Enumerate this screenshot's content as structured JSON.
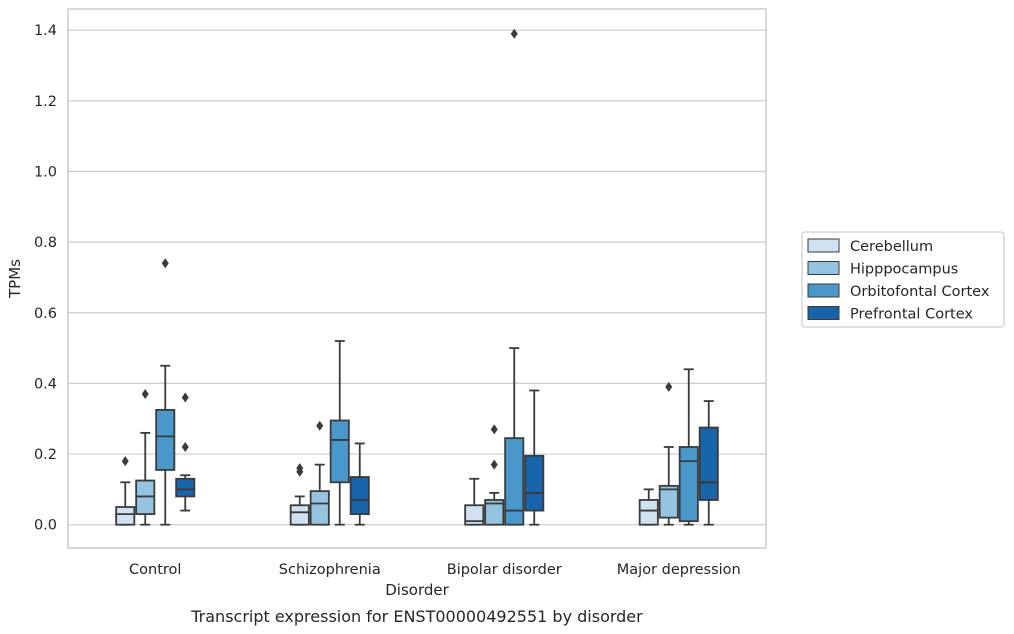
{
  "caption": "Transcript expression for ENST00000492551 by disorder",
  "chart_data": {
    "type": "box",
    "xlabel": "Disorder",
    "ylabel": "TPMs",
    "ylim": [
      -0.066,
      1.46
    ],
    "yticks": [
      0.0,
      0.2,
      0.4,
      0.6,
      0.8,
      1.0,
      1.2,
      1.4
    ],
    "ytick_labels": [
      "0.0",
      "0.2",
      "0.4",
      "0.6",
      "0.8",
      "1.0",
      "1.2",
      "1.4"
    ],
    "grid": "horizontal",
    "legend_position": "right",
    "categories": [
      "Control",
      "Schizophrenia",
      "Bipolar disorder",
      "Major depression"
    ],
    "series": [
      {
        "name": "Cerebellum",
        "color": "#d0e1f2",
        "boxes": [
          {
            "whislo": 0.0,
            "q1": 0.0,
            "med": 0.03,
            "q3": 0.05,
            "whishi": 0.12,
            "fliers": [
              0.18
            ]
          },
          {
            "whislo": 0.0,
            "q1": 0.0,
            "med": 0.035,
            "q3": 0.055,
            "whishi": 0.08,
            "fliers": [
              0.15,
              0.16
            ]
          },
          {
            "whislo": 0.0,
            "q1": 0.0,
            "med": 0.01,
            "q3": 0.055,
            "whishi": 0.13,
            "fliers": []
          },
          {
            "whislo": 0.0,
            "q1": 0.0,
            "med": 0.04,
            "q3": 0.07,
            "whishi": 0.1,
            "fliers": []
          }
        ]
      },
      {
        "name": "Hipppocampus",
        "color": "#94c4df",
        "boxes": [
          {
            "whislo": 0.0,
            "q1": 0.03,
            "med": 0.08,
            "q3": 0.125,
            "whishi": 0.26,
            "fliers": [
              0.37
            ]
          },
          {
            "whislo": 0.0,
            "q1": 0.0,
            "med": 0.06,
            "q3": 0.095,
            "whishi": 0.17,
            "fliers": [
              0.28
            ]
          },
          {
            "whislo": 0.0,
            "q1": 0.0,
            "med": 0.06,
            "q3": 0.07,
            "whishi": 0.09,
            "fliers": [
              0.17,
              0.27
            ]
          },
          {
            "whislo": 0.0,
            "q1": 0.02,
            "med": 0.1,
            "q3": 0.11,
            "whishi": 0.22,
            "fliers": [
              0.39
            ]
          }
        ]
      },
      {
        "name": "Orbitofontal Cortex",
        "color": "#4a98c9",
        "boxes": [
          {
            "whislo": 0.0,
            "q1": 0.155,
            "med": 0.25,
            "q3": 0.325,
            "whishi": 0.45,
            "fliers": [
              0.74
            ]
          },
          {
            "whislo": 0.0,
            "q1": 0.12,
            "med": 0.24,
            "q3": 0.295,
            "whishi": 0.52,
            "fliers": []
          },
          {
            "whislo": 0.0,
            "q1": 0.0,
            "med": 0.04,
            "q3": 0.245,
            "whishi": 0.5,
            "fliers": [
              1.39
            ]
          },
          {
            "whislo": 0.0,
            "q1": 0.01,
            "med": 0.18,
            "q3": 0.22,
            "whishi": 0.44,
            "fliers": []
          }
        ]
      },
      {
        "name": "Prefrontal Cortex",
        "color": "#1764ab",
        "boxes": [
          {
            "whislo": 0.04,
            "q1": 0.08,
            "med": 0.1,
            "q3": 0.13,
            "whishi": 0.14,
            "fliers": [
              0.22,
              0.36
            ]
          },
          {
            "whislo": 0.0,
            "q1": 0.03,
            "med": 0.07,
            "q3": 0.135,
            "whishi": 0.23,
            "fliers": []
          },
          {
            "whislo": 0.0,
            "q1": 0.04,
            "med": 0.09,
            "q3": 0.195,
            "whishi": 0.38,
            "fliers": []
          },
          {
            "whislo": 0.0,
            "q1": 0.07,
            "med": 0.12,
            "q3": 0.275,
            "whishi": 0.35,
            "fliers": []
          }
        ]
      }
    ]
  }
}
